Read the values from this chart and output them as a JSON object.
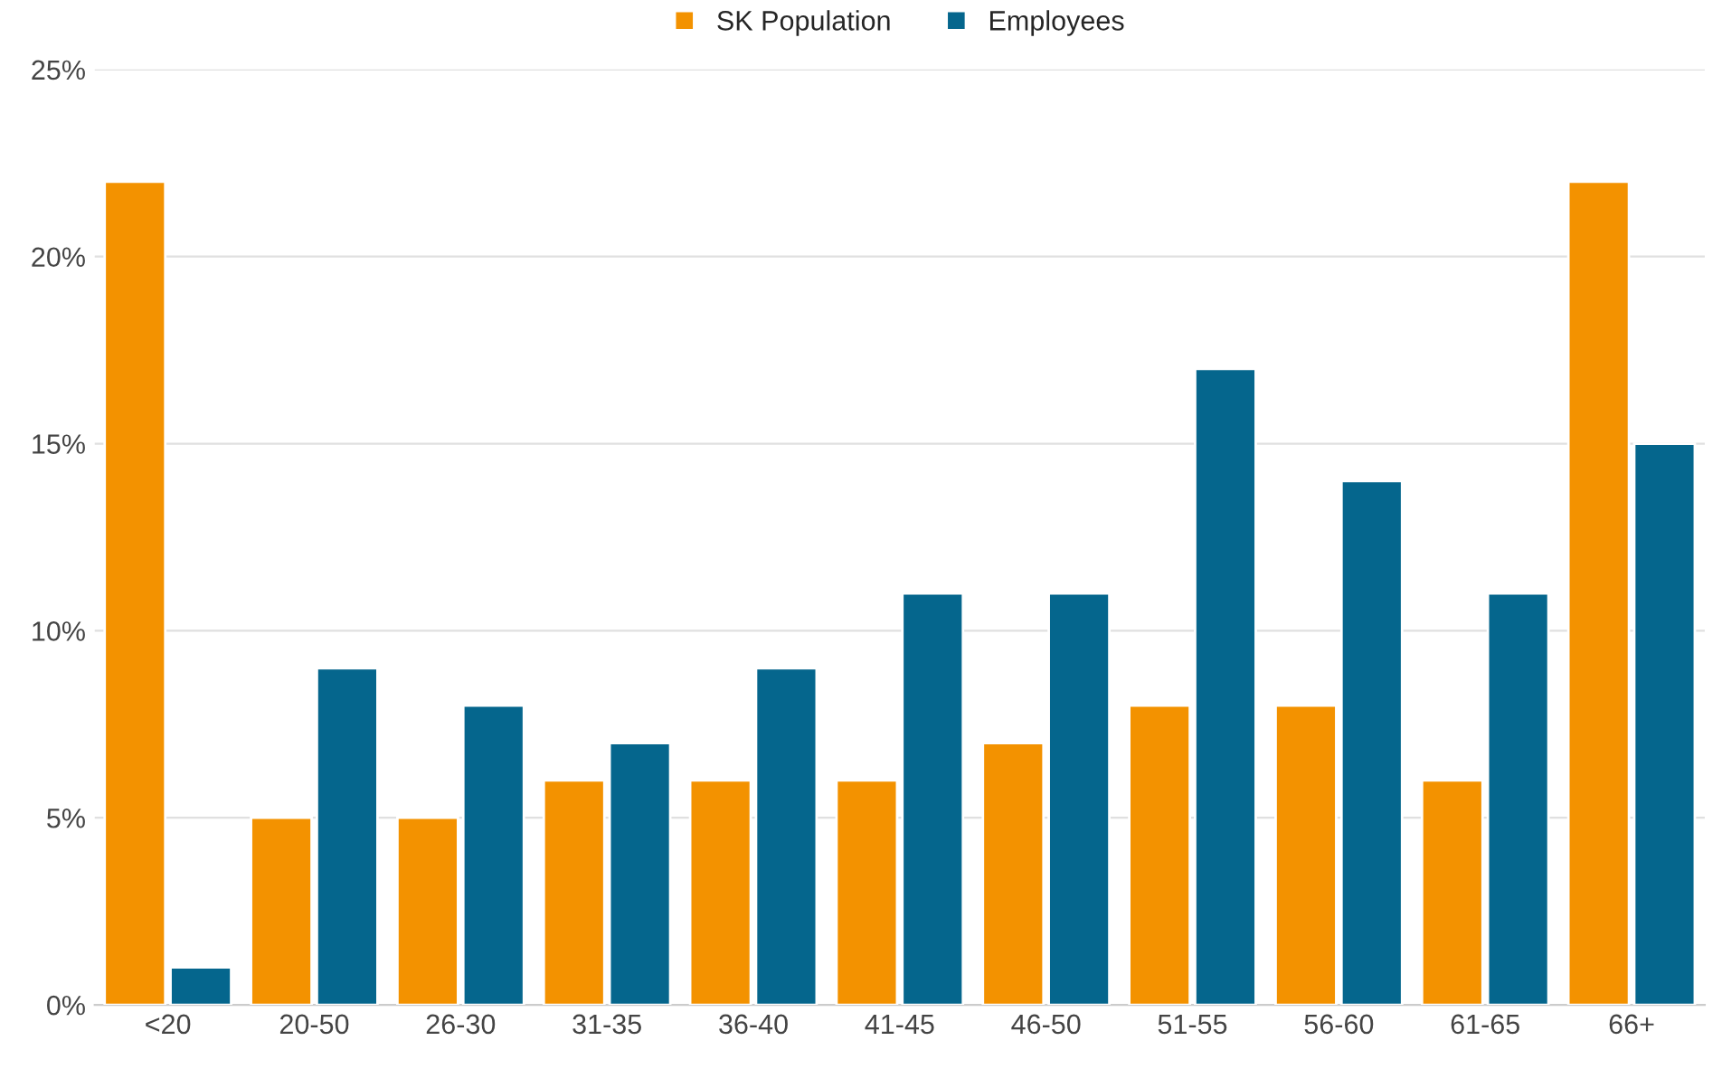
{
  "chart_data": {
    "type": "bar",
    "categories": [
      "<20",
      "20-50",
      "26-30",
      "31-35",
      "36-40",
      "41-45",
      "46-50",
      "51-55",
      "56-60",
      "61-65",
      "66+"
    ],
    "series": [
      {
        "name": "SK Population",
        "color": "#f39200",
        "values": [
          22,
          5,
          5,
          6,
          6,
          6,
          7,
          8,
          8,
          6,
          22
        ]
      },
      {
        "name": "Employees",
        "color": "#05668d",
        "values": [
          1,
          9,
          8,
          7,
          9,
          11,
          11,
          17,
          14,
          11,
          15
        ]
      }
    ],
    "ylim": [
      0,
      25
    ],
    "yticks": [
      {
        "value": 0,
        "label": "0%"
      },
      {
        "value": 5,
        "label": "5%"
      },
      {
        "value": 10,
        "label": "10%"
      },
      {
        "value": 15,
        "label": "15%"
      },
      {
        "value": 20,
        "label": "20%"
      },
      {
        "value": 25,
        "label": "25%"
      }
    ],
    "grid": "y",
    "legend": "top"
  }
}
